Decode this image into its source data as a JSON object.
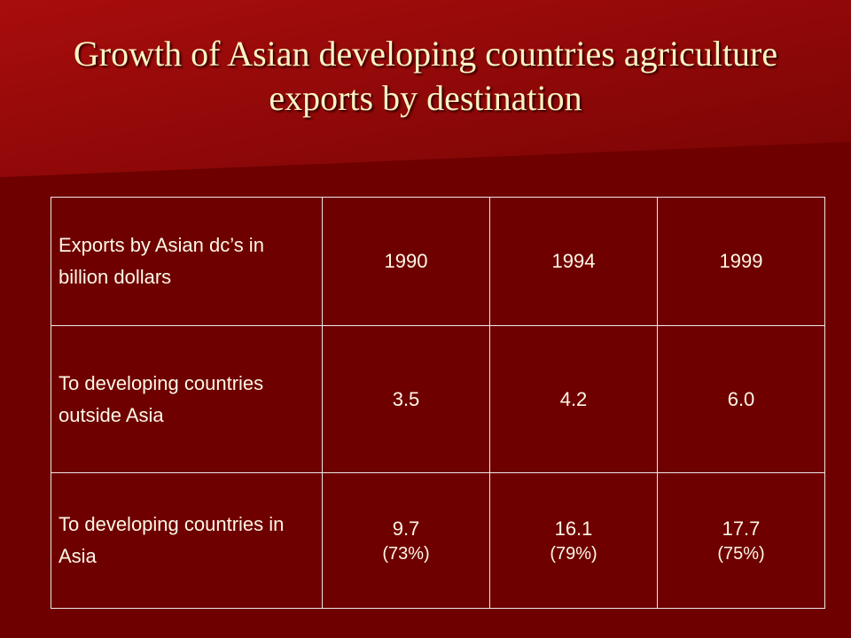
{
  "title": "Growth of Asian developing countries agriculture exports by destination",
  "table": {
    "header": [
      "Exports by Asian dc’s in billion dollars",
      "1990",
      "1994",
      "1999"
    ],
    "rows": [
      {
        "label": "To developing countries outside Asia",
        "values": [
          "3.5",
          "4.2",
          "6.0"
        ]
      },
      {
        "label": "To developing countries in Asia",
        "values": [
          "9.7",
          "16.1",
          "17.7"
        ],
        "shares": [
          "(73%)",
          "(79%)",
          "(75%)"
        ]
      }
    ]
  }
}
